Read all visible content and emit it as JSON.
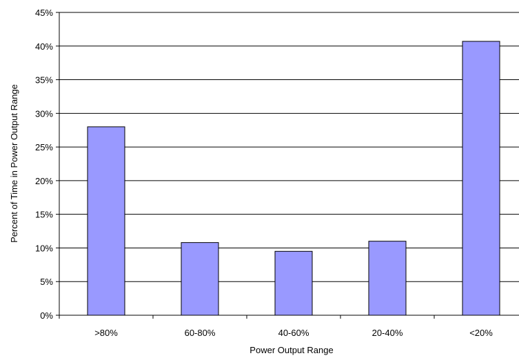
{
  "chart_data": {
    "type": "bar",
    "categories": [
      ">80%",
      "60-80%",
      "40-60%",
      "20-40%",
      "<20%"
    ],
    "values": [
      28.0,
      10.8,
      9.5,
      11.0,
      40.7
    ],
    "xlabel": "Power Output Range",
    "ylabel": "Percent of Time in Power Output Range",
    "ylim": [
      0,
      45
    ],
    "yticks": [
      "0%",
      "5%",
      "10%",
      "15%",
      "20%",
      "25%",
      "30%",
      "35%",
      "40%",
      "45%"
    ],
    "grid": true,
    "legend": "none",
    "colors": {
      "bar": "#9999ff",
      "bar_stroke": "#000000",
      "grid": "#000000"
    }
  }
}
